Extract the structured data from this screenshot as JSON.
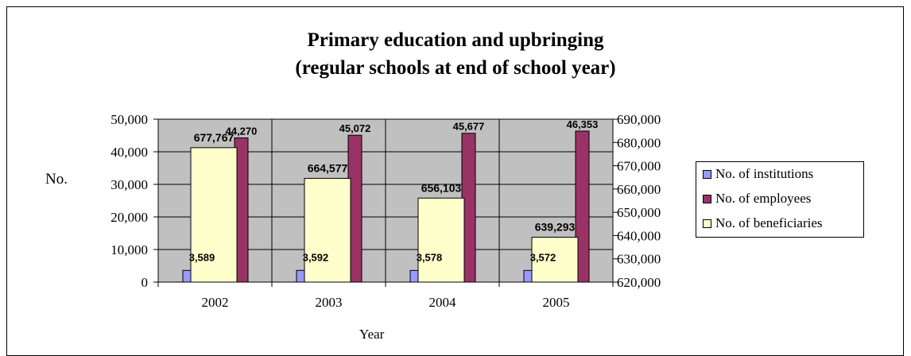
{
  "chart_data": {
    "type": "bar",
    "title": [
      "Primary education and upbringing",
      "(regular schools at end of school year)"
    ],
    "xlabel": "Year",
    "ylabel": "No.",
    "categories": [
      "2002",
      "2003",
      "2004",
      "2005"
    ],
    "ylim": [
      0,
      50000
    ],
    "y2lim": [
      620000,
      690000
    ],
    "left_ticks": [
      "0",
      "10,000",
      "20,000",
      "30,000",
      "40,000",
      "50,000"
    ],
    "right_ticks": [
      "620,000",
      "630,000",
      "640,000",
      "650,000",
      "660,000",
      "670,000",
      "680,000",
      "690,000"
    ],
    "grid": true,
    "legend_position": "right",
    "plot_background": "#c0c0c0",
    "series": [
      {
        "name": "No. of institutions",
        "axis": "left",
        "color": "#9999ff",
        "values": [
          3589,
          3592,
          3578,
          3572
        ],
        "labels": [
          "3,589",
          "3,592",
          "3,578",
          "3,572"
        ]
      },
      {
        "name": "No. of employees",
        "axis": "left",
        "color": "#993366",
        "values": [
          44270,
          45072,
          45677,
          46353
        ],
        "labels": [
          "44,270",
          "45,072",
          "45,677",
          "46,353"
        ]
      },
      {
        "name": "No. of beneficiaries",
        "axis": "right",
        "color": "#ffffcc",
        "values": [
          677767,
          664577,
          656103,
          639293
        ],
        "labels": [
          "677,767",
          "664,577",
          "656,103",
          "639,293"
        ]
      }
    ]
  }
}
